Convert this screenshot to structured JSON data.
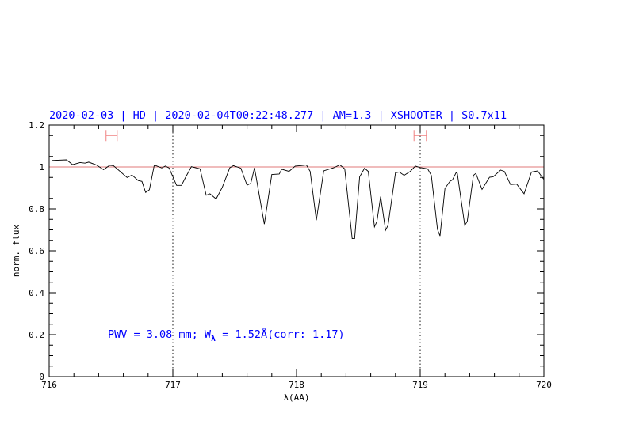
{
  "chart_data": {
    "type": "line",
    "title": "2020-02-03 | HD | 2020-02-04T00:22:48.277 | AM=1.3 | XSHOOTER | S0.7x11",
    "xlabel": "λ(AA)",
    "ylabel": "norm. flux",
    "xlim": [
      716,
      720
    ],
    "ylim": [
      0,
      1.2
    ],
    "xticks": [
      "716",
      "717",
      "718",
      "719",
      "720"
    ],
    "yticks": [
      "0",
      "0.2",
      "0.4",
      "0.6",
      "0.8",
      "1",
      "1.2"
    ],
    "grid": false,
    "reference_line_y": 1,
    "vertical_dotted_x": [
      717,
      719
    ],
    "error_bars": [
      {
        "x": [
          716.46,
          716.55
        ],
        "y": 1.15
      },
      {
        "x": [
          718.95,
          719.05
        ],
        "y": 1.15
      }
    ],
    "annotation": {
      "pre": "PWV = 3.08 mm; W",
      "sub": "λ",
      "post": " = 1.52Å(corr: 1.17)",
      "x": 716.5,
      "y": 0.2
    },
    "colors": {
      "title": "#0000ff",
      "spectrum": "#000000",
      "reference_line": "#e07878",
      "error_bars": "#f08080",
      "annotation": "#0000ff"
    },
    "series": [
      {
        "x": [
          716.02,
          716.14,
          716.19,
          716.25,
          716.29,
          716.32,
          716.38,
          716.44,
          716.49,
          716.52,
          716.63,
          716.67,
          716.72,
          716.75,
          716.78,
          716.81,
          716.85,
          716.91,
          716.94,
          716.97,
          717.03,
          717.07,
          717.1,
          717.15,
          717.22,
          717.27,
          717.3,
          717.35,
          717.4,
          717.46,
          717.49,
          717.55,
          717.6,
          717.63,
          717.66,
          717.74,
          717.8,
          717.86,
          717.88,
          717.94,
          717.99,
          718.03,
          718.08,
          718.11,
          718.16,
          718.22,
          718.26,
          718.3,
          718.35,
          718.39,
          718.45,
          718.47,
          718.51,
          718.55,
          718.58,
          718.63,
          718.65,
          718.68,
          718.72,
          718.74,
          718.8,
          718.83,
          718.87,
          718.92,
          718.96,
          719.0,
          719.06,
          719.09,
          719.14,
          719.16,
          719.2,
          719.24,
          719.26,
          719.29,
          719.3,
          719.36,
          719.38,
          719.43,
          719.45,
          719.5,
          719.56,
          719.59,
          719.65,
          719.68,
          719.73,
          719.78,
          719.84,
          719.9,
          719.95,
          719.97,
          720.0
        ],
        "y": [
          1.031,
          1.034,
          1.011,
          1.021,
          1.018,
          1.023,
          1.01,
          0.987,
          1.008,
          1.006,
          0.95,
          0.961,
          0.935,
          0.931,
          0.878,
          0.891,
          1.009,
          0.995,
          1.004,
          0.995,
          0.912,
          0.912,
          0.947,
          1.001,
          0.991,
          0.865,
          0.872,
          0.847,
          0.903,
          0.996,
          1.006,
          0.994,
          0.913,
          0.922,
          0.996,
          0.727,
          0.964,
          0.966,
          0.989,
          0.979,
          1.004,
          1.006,
          1.009,
          0.979,
          0.746,
          0.981,
          0.989,
          0.996,
          1.01,
          0.991,
          0.658,
          0.658,
          0.953,
          0.994,
          0.979,
          0.714,
          0.74,
          0.859,
          0.698,
          0.721,
          0.972,
          0.976,
          0.96,
          0.979,
          1.004,
          0.997,
          0.991,
          0.96,
          0.702,
          0.671,
          0.897,
          0.931,
          0.938,
          0.972,
          0.969,
          0.721,
          0.74,
          0.96,
          0.969,
          0.893,
          0.951,
          0.953,
          0.985,
          0.979,
          0.916,
          0.918,
          0.872,
          0.976,
          0.981,
          0.964,
          0.94
        ]
      }
    ]
  }
}
